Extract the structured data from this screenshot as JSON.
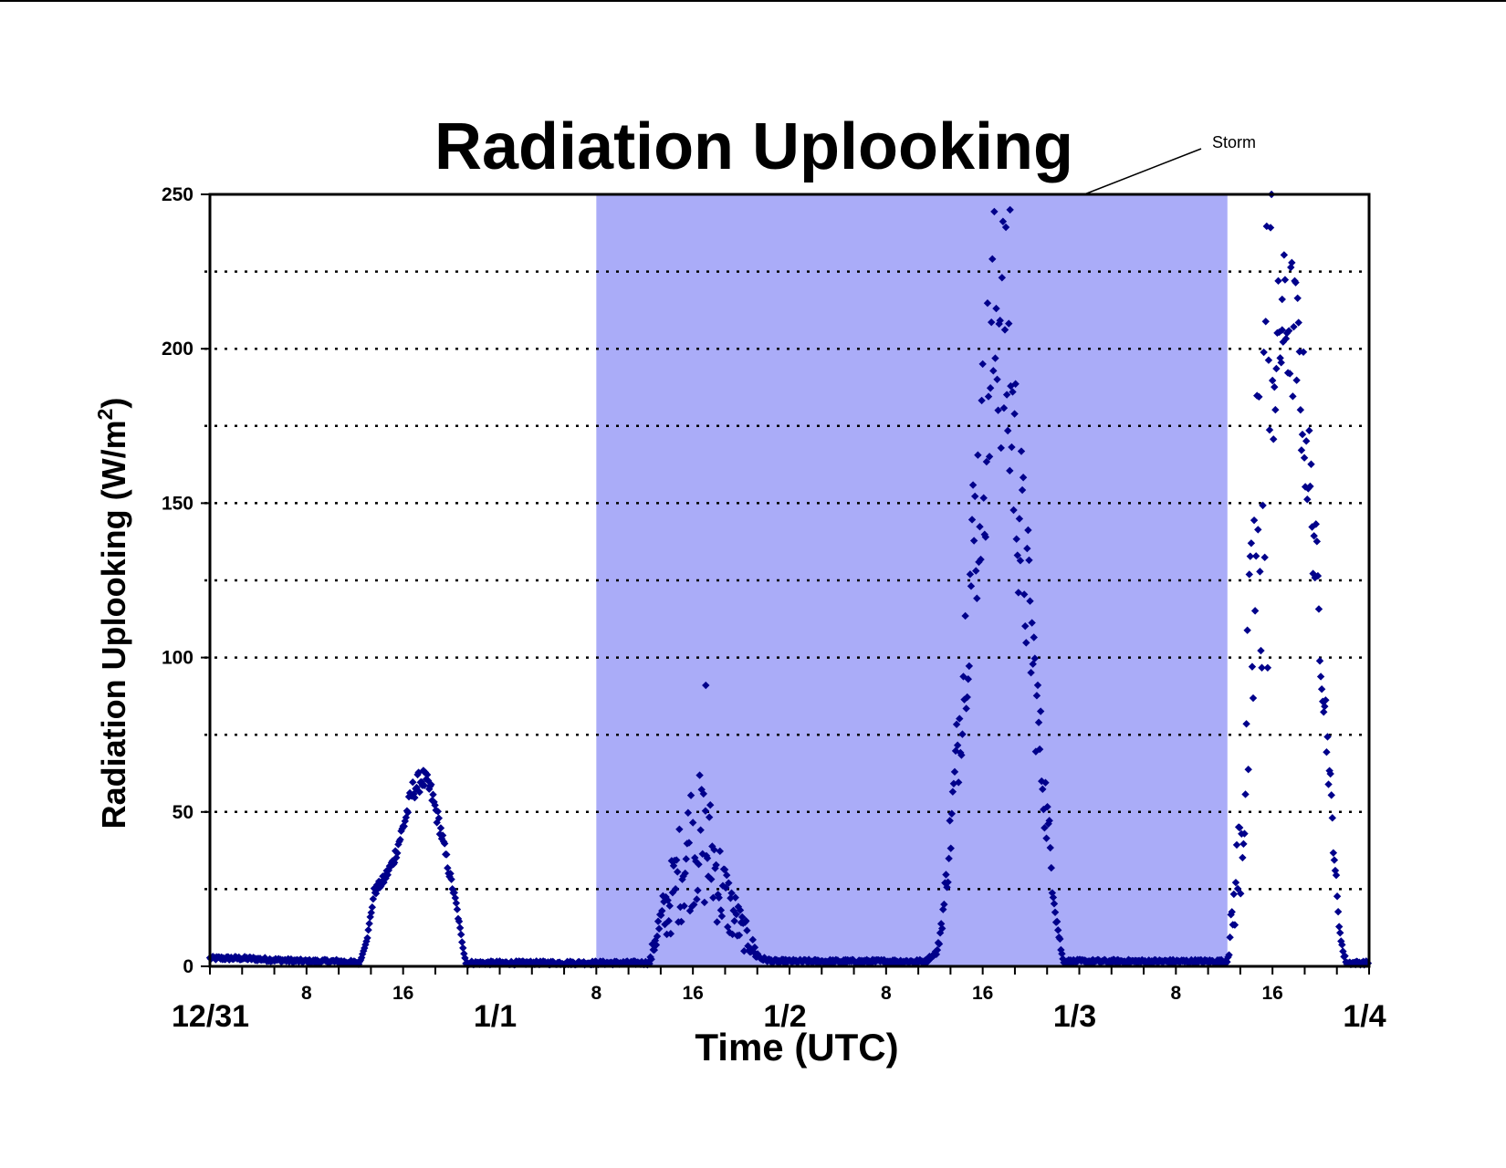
{
  "chart_data": {
    "type": "scatter",
    "title": "Radiation Uplooking",
    "xlabel": "Time (UTC)",
    "ylabel": "Radiation Uplooking (W/m2)",
    "ylabel_parts": {
      "prefix": "Radiation Uplooking (W/m",
      "sup": "2",
      "suffix": ")"
    },
    "x_unit": "hours since 12/31 00:00 UTC",
    "xlim": [
      0,
      72
    ],
    "ylim": [
      0,
      250
    ],
    "yticks": [
      0,
      50,
      100,
      150,
      200,
      250
    ],
    "gridlines_y": [
      25,
      50,
      75,
      100,
      125,
      150,
      175,
      200,
      225
    ],
    "grid": "horizontal dotted",
    "x_date_ticks": [
      {
        "x": 0,
        "label": "12/31"
      },
      {
        "x": 18,
        "label": "1/1"
      },
      {
        "x": 36,
        "label": "1/2"
      },
      {
        "x": 54,
        "label": "1/3"
      },
      {
        "x": 72,
        "label": "1/4"
      }
    ],
    "x_hour_ticks": [
      {
        "x": 6,
        "label": "8"
      },
      {
        "x": 12,
        "label": "16"
      },
      {
        "x": 24,
        "label": "8"
      },
      {
        "x": 30,
        "label": "16"
      },
      {
        "x": 42,
        "label": "8"
      },
      {
        "x": 48,
        "label": "16"
      },
      {
        "x": 60,
        "label": "8"
      },
      {
        "x": 66,
        "label": "16"
      }
    ],
    "storm_period": {
      "x_start": 24,
      "x_end": 63.2,
      "color": "#aaacf8"
    },
    "annotations": [
      {
        "text": "Storm"
      }
    ],
    "series": [
      {
        "marker": "diamond",
        "color": "#00008b",
        "profile": [
          [
            0,
            2
          ],
          [
            2,
            2
          ],
          [
            4,
            1.5
          ],
          [
            6,
            1
          ],
          [
            8,
            1
          ],
          [
            9.3,
            0.5
          ],
          [
            9.8,
            10
          ],
          [
            10.2,
            24
          ],
          [
            10.8,
            28
          ],
          [
            11.4,
            34
          ],
          [
            12,
            45
          ],
          [
            12.6,
            57
          ],
          [
            13.2,
            61
          ],
          [
            13.7,
            57
          ],
          [
            14.3,
            45
          ],
          [
            14.8,
            32
          ],
          [
            15.3,
            20
          ],
          [
            15.6,
            10
          ],
          [
            15.9,
            0.5
          ],
          [
            24,
            0.5
          ],
          [
            27.3,
            0.5
          ],
          [
            27.7,
            10
          ],
          [
            28.5,
            20
          ],
          [
            29.3,
            32
          ],
          [
            30,
            42
          ],
          [
            30.6,
            40
          ],
          [
            31.2,
            35
          ],
          [
            31.8,
            25
          ],
          [
            32.4,
            18
          ],
          [
            33,
            12
          ],
          [
            33.6,
            7
          ],
          [
            34.2,
            2
          ],
          [
            35,
            1
          ],
          [
            44.5,
            1
          ],
          [
            45.2,
            5
          ],
          [
            45.6,
            20
          ],
          [
            46.2,
            55
          ],
          [
            46.8,
            95
          ],
          [
            47.4,
            135
          ],
          [
            48,
            165
          ],
          [
            48.5,
            195
          ],
          [
            49,
            215
          ],
          [
            49.4,
            200
          ],
          [
            49.9,
            172
          ],
          [
            50.4,
            140
          ],
          [
            51,
            108
          ],
          [
            51.5,
            75
          ],
          [
            52.1,
            42
          ],
          [
            52.6,
            15
          ],
          [
            53,
            1
          ],
          [
            63.2,
            1
          ],
          [
            63.6,
            20
          ],
          [
            64.1,
            45
          ],
          [
            64.6,
            90
          ],
          [
            65.1,
            140
          ],
          [
            65.6,
            172
          ],
          [
            66.2,
            195
          ],
          [
            66.6,
            207
          ],
          [
            67.1,
            209
          ],
          [
            67.5,
            200
          ],
          [
            68,
            175
          ],
          [
            68.5,
            145
          ],
          [
            69,
            105
          ],
          [
            69.5,
            65
          ],
          [
            69.8,
            40
          ],
          [
            70.1,
            15
          ],
          [
            70.4,
            4
          ],
          [
            70.6,
            0.5
          ],
          [
            72,
            0.5
          ]
        ],
        "peaks": [
          {
            "x": 13.3,
            "y": 63
          },
          {
            "x": 30.8,
            "y": 91
          },
          {
            "x": 49.7,
            "y": 245
          },
          {
            "x": 66.6,
            "y": 216
          }
        ]
      }
    ]
  }
}
